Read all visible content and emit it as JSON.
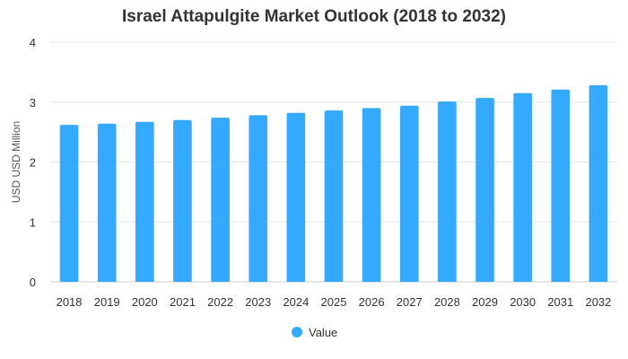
{
  "chart_data": {
    "type": "bar",
    "title": "Israel Attapulgite Market Outlook (2018 to 2032)",
    "xlabel": "",
    "ylabel": "USD USD Million",
    "ylim": [
      0,
      4
    ],
    "yticks": [
      0,
      1,
      2,
      3,
      4
    ],
    "grid": true,
    "legend_position": "bottom",
    "categories": [
      "2018",
      "2019",
      "2020",
      "2021",
      "2022",
      "2023",
      "2024",
      "2025",
      "2026",
      "2027",
      "2028",
      "2029",
      "2030",
      "2031",
      "2032"
    ],
    "series": [
      {
        "name": "Value",
        "color": "#33aaff",
        "values": [
          2.62,
          2.64,
          2.67,
          2.7,
          2.74,
          2.78,
          2.82,
          2.86,
          2.9,
          2.94,
          3.01,
          3.07,
          3.15,
          3.21,
          3.28
        ]
      }
    ]
  }
}
